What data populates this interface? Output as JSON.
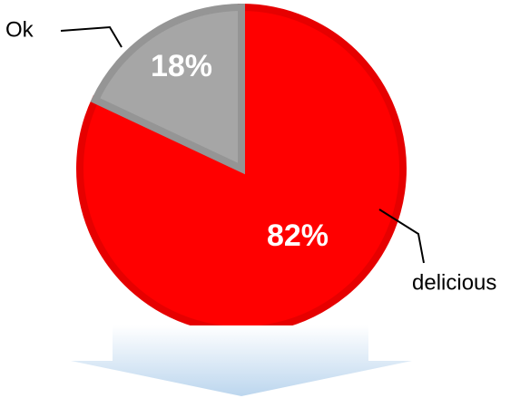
{
  "chart_data": {
    "type": "pie",
    "categories": [
      "delicious",
      "Ok"
    ],
    "values": [
      82,
      18
    ],
    "data_labels": [
      "82%",
      "18%"
    ],
    "colors": [
      "#ff0000",
      "#a6a6a6"
    ],
    "edge_colors": [
      "#e60000",
      "#959595"
    ],
    "start_angle_deg": 0,
    "direction": "clockwise",
    "title": "",
    "legend": "none"
  },
  "arrow": {
    "direction": "down",
    "gradient": [
      "#ffffff",
      "#bcd6ee"
    ]
  }
}
